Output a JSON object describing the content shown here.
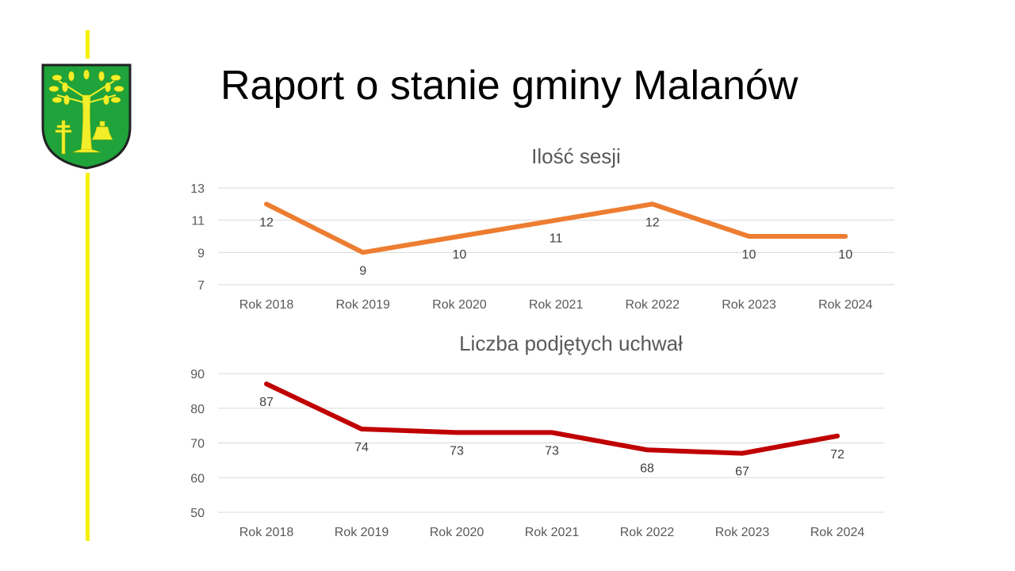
{
  "slide": {
    "title": "Raport o stanie gminy Malanów",
    "logo": "coat-of-arms-gmina-malanow"
  },
  "chart_data": [
    {
      "type": "line",
      "title": "Ilość sesji",
      "categories": [
        "Rok 2018",
        "Rok 2019",
        "Rok 2020",
        "Rok 2021",
        "Rok 2022",
        "Rok 2023",
        "Rok 2024"
      ],
      "values": [
        12,
        9,
        10,
        11,
        12,
        10,
        10
      ],
      "ylim": [
        7,
        13
      ],
      "yticks": [
        7,
        9,
        11,
        13
      ],
      "grid": true,
      "color": "#ed7d31",
      "xlabel": "",
      "ylabel": ""
    },
    {
      "type": "line",
      "title": "Liczba podjętych uchwał",
      "categories": [
        "Rok 2018",
        "Rok 2019",
        "Rok 2020",
        "Rok 2021",
        "Rok 2022",
        "Rok 2023",
        "Rok 2024"
      ],
      "values": [
        87,
        74,
        73,
        73,
        68,
        67,
        72
      ],
      "ylim": [
        50,
        90
      ],
      "yticks": [
        50,
        60,
        70,
        80,
        90
      ],
      "grid": true,
      "color": "#c00000",
      "xlabel": "",
      "ylabel": ""
    }
  ]
}
